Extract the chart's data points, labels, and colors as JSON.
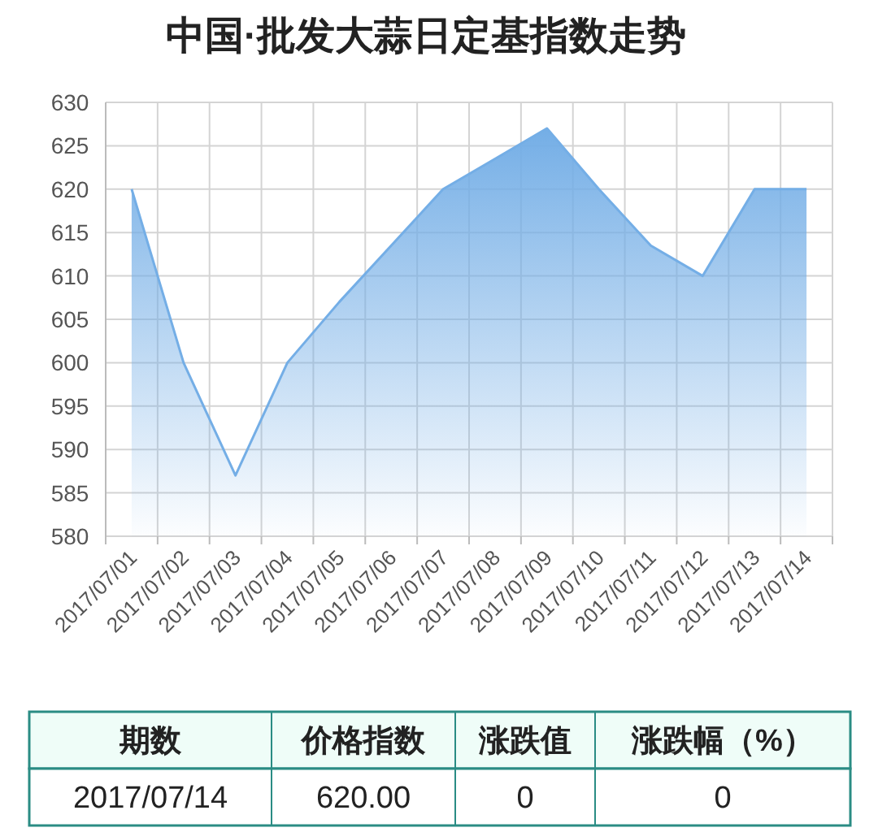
{
  "chart_data": {
    "type": "area",
    "title": "中国·批发大蒜日定基指数走势",
    "categories": [
      "2017/07/01",
      "2017/07/02",
      "2017/07/03",
      "2017/07/04",
      "2017/07/05",
      "2017/07/06",
      "2017/07/07",
      "2017/07/08",
      "2017/07/09",
      "2017/07/10",
      "2017/07/11",
      "2017/07/12",
      "2017/07/13",
      "2017/07/14"
    ],
    "series": [
      {
        "color": "#74aee6",
        "values": [
          620,
          600,
          587,
          600,
          607,
          613.5,
          620,
          623.5,
          627,
          620,
          613.5,
          610,
          620,
          620
        ]
      }
    ],
    "ylim": [
      580,
      630
    ],
    "yticks": [
      580,
      585,
      590,
      595,
      600,
      605,
      610,
      615,
      620,
      625,
      630
    ],
    "grid": true,
    "marker": "none",
    "annotations": [
      "期数",
      "价格指数",
      "涨跌值",
      "涨跌幅（%）",
      "2017/07/14",
      "620.00",
      "0",
      "0"
    ]
  }
}
